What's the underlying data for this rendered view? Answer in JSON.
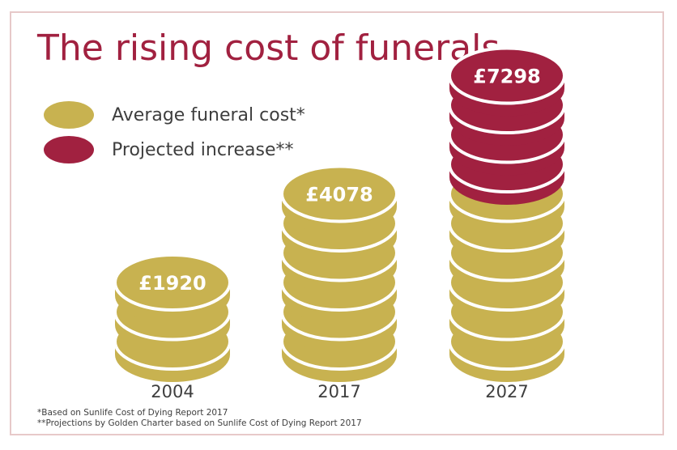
{
  "chart_data": {
    "type": "bar",
    "title": "The rising cost of funerals",
    "categories": [
      "2004",
      "2017",
      "2027"
    ],
    "series": [
      {
        "name": "Average funeral cost*",
        "values": [
          1920,
          4078,
          4078
        ]
      },
      {
        "name": "Projected increase**",
        "values": [
          0,
          0,
          3220
        ]
      }
    ],
    "totals": [
      1920,
      4078,
      7298
    ],
    "value_labels": [
      "£1920",
      "£4078",
      "£7298"
    ],
    "coin_counts": {
      "average": [
        3,
        6,
        6
      ],
      "projected": [
        0,
        0,
        4
      ]
    },
    "legend_position": "top-left",
    "colors": {
      "average": "#c8b250",
      "projected": "#a12140",
      "title": "#a12140",
      "text": "#3e3e3e",
      "border": "#e7c9c9"
    }
  },
  "footnotes": [
    "*Based on Sunlife Cost of Dying Report 2017",
    "**Projections by Golden Charter based on Sunlife Cost of Dying Report 2017"
  ]
}
